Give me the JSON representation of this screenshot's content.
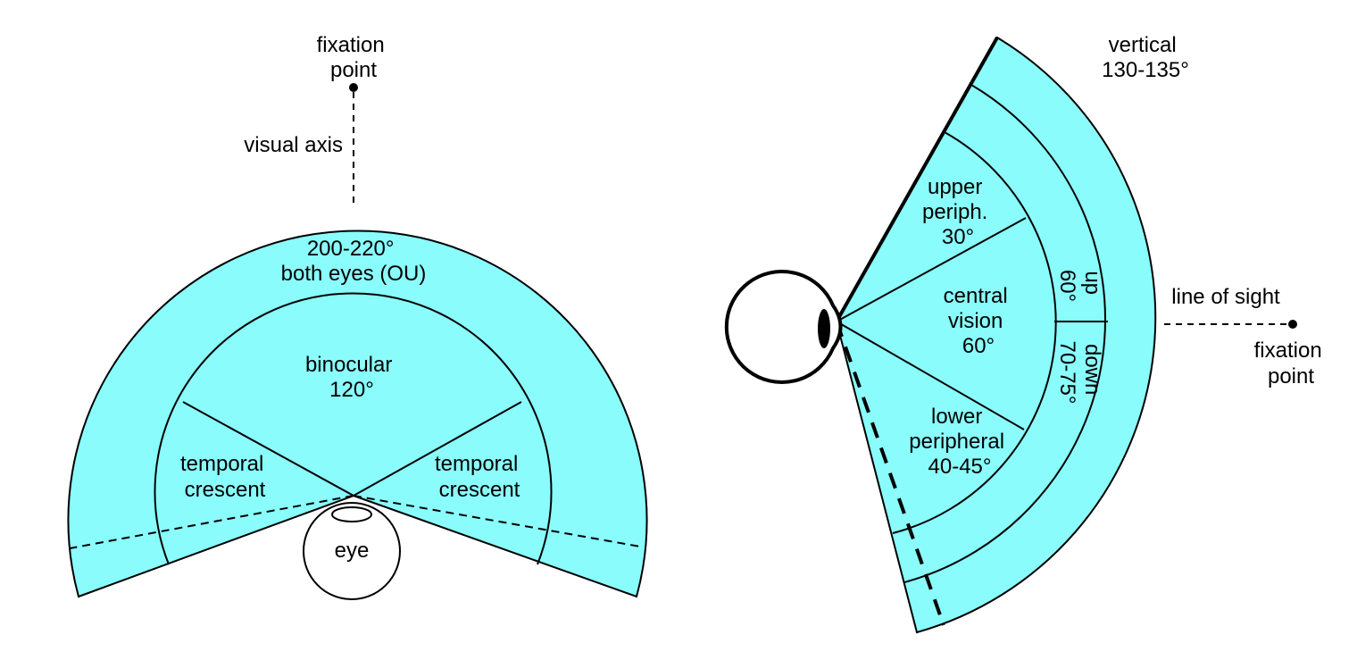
{
  "colors": {
    "field_fill": "#8afcfc",
    "stroke": "#000000",
    "background": "#ffffff"
  },
  "horizontal": {
    "fixation_point_label": [
      "fixation",
      "point"
    ],
    "visual_axis_label": "visual axis",
    "both_eyes_label": [
      "200-220°",
      "both eyes (OU)"
    ],
    "binocular_label": [
      "binocular",
      "120°"
    ],
    "left_crescent_label": [
      "temporal",
      "crescent"
    ],
    "right_crescent_label": [
      "temporal",
      "crescent"
    ],
    "eye_label": "eye"
  },
  "vertical": {
    "vertical_label": [
      "vertical",
      "130-135°"
    ],
    "upper_label": [
      "upper",
      "periph.",
      "30°"
    ],
    "central_label": [
      "central",
      "vision",
      "60°"
    ],
    "lower_label": [
      "lower",
      "peripheral",
      "40-45°"
    ],
    "up_label": [
      "up",
      "60°"
    ],
    "down_label": [
      "down",
      "70-75°"
    ],
    "line_of_sight_label": "line of sight",
    "fixation_point_label": [
      "fixation",
      "point"
    ]
  }
}
